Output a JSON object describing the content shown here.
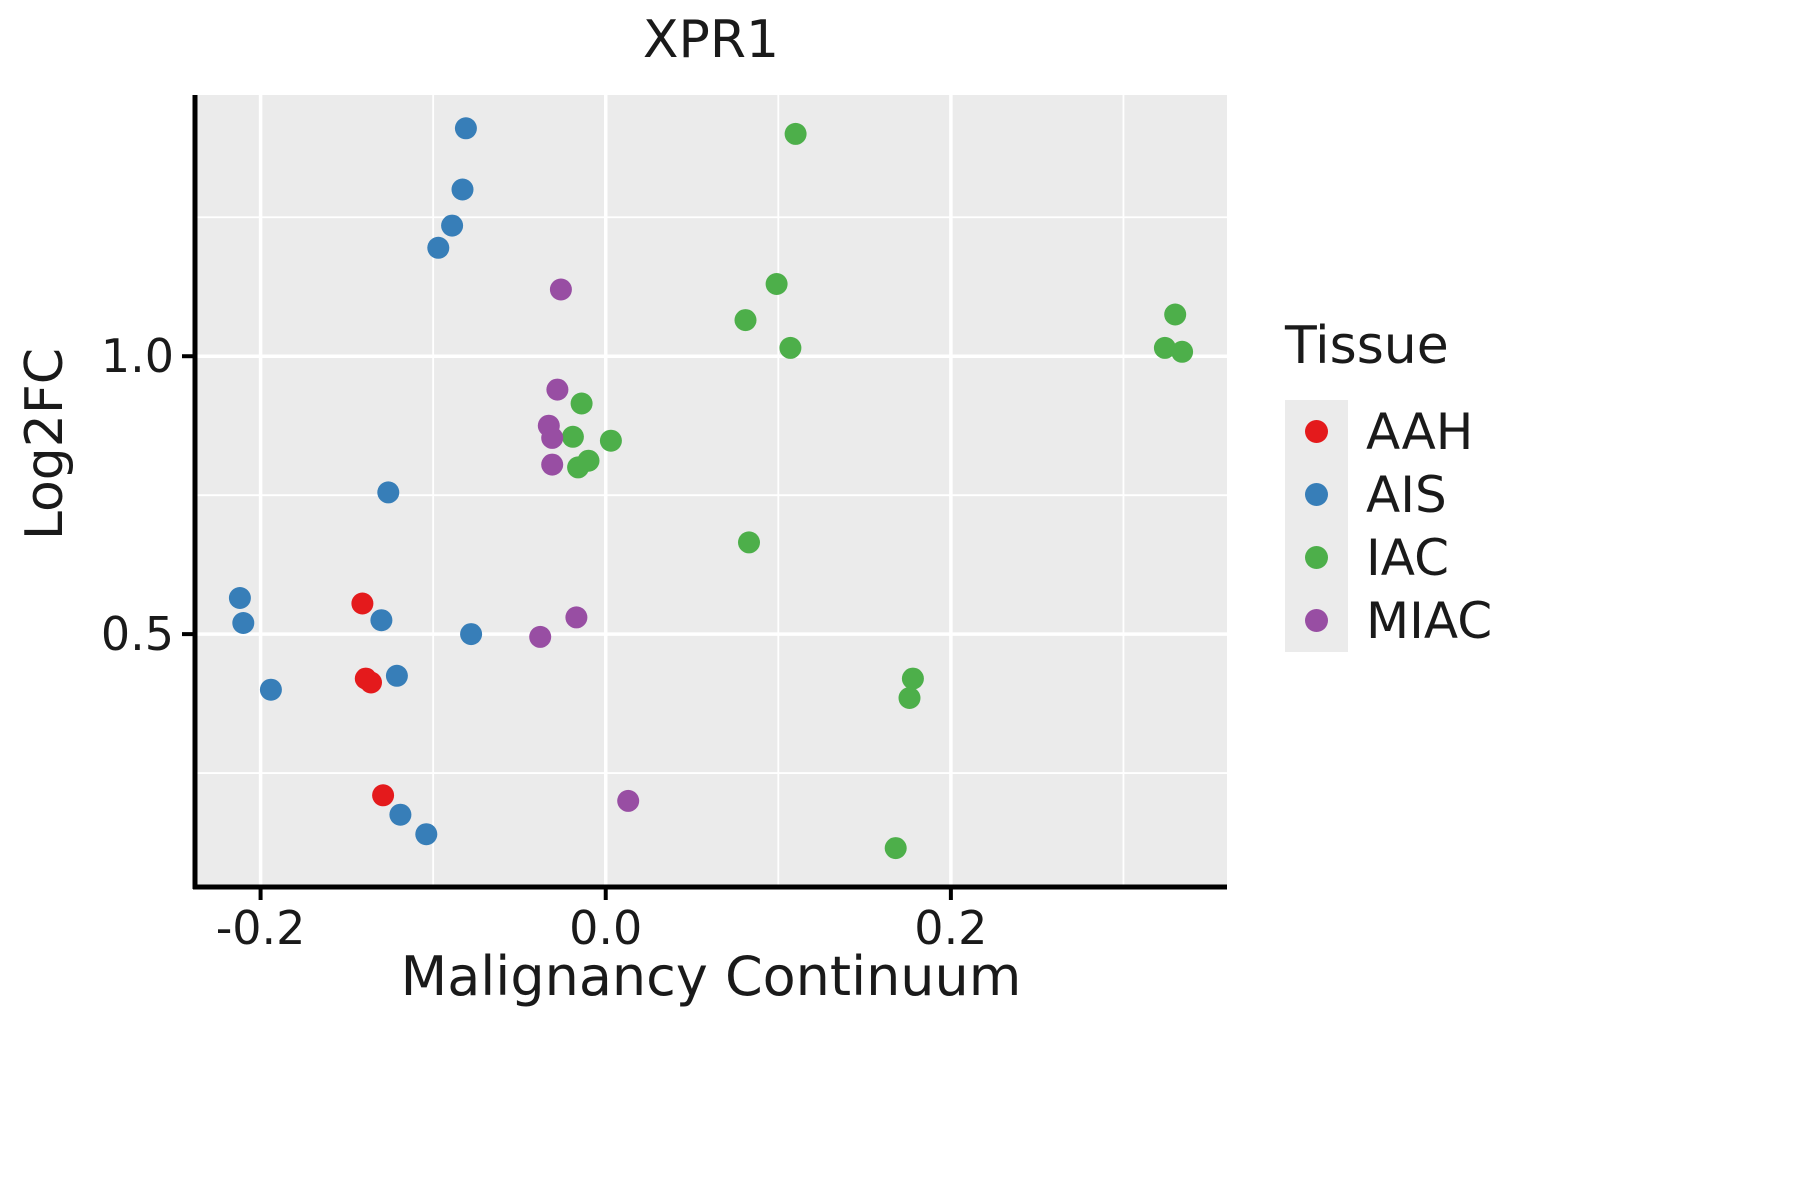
{
  "chart_data": {
    "type": "scatter",
    "title": "XPR1",
    "xlabel": "Malignancy Continuum",
    "ylabel": "Log2FC",
    "xlim": [
      -0.238,
      0.36
    ],
    "ylim": [
      0.045,
      1.47
    ],
    "x_major_ticks": [
      -0.2,
      0.0,
      0.2
    ],
    "x_tick_labels": [
      "-0.2",
      "0.0",
      "0.2"
    ],
    "x_minor_ticks": [
      -0.1,
      0.1,
      0.3
    ],
    "y_major_ticks": [
      0.5,
      1.0
    ],
    "y_tick_labels": [
      "0.5",
      "1.0"
    ],
    "y_minor_ticks": [
      0.25,
      0.75,
      1.25
    ],
    "grid": true,
    "panel_bg": "#EBEBEB",
    "grid_color": "#FFFFFF",
    "axis_color": "#000000",
    "point_radius": 11,
    "legend_title": "Tissue",
    "legend_position": "right",
    "series": [
      {
        "name": "AAH",
        "color": "#E41A1C",
        "points": [
          [
            -0.141,
            0.555
          ],
          [
            -0.139,
            0.42
          ],
          [
            -0.136,
            0.413
          ],
          [
            -0.129,
            0.21
          ]
        ]
      },
      {
        "name": "AIS",
        "color": "#377EB8",
        "points": [
          [
            -0.081,
            1.41
          ],
          [
            -0.083,
            1.3
          ],
          [
            -0.089,
            1.235
          ],
          [
            -0.097,
            1.195
          ],
          [
            -0.126,
            0.755
          ],
          [
            -0.212,
            0.565
          ],
          [
            -0.21,
            0.52
          ],
          [
            -0.13,
            0.525
          ],
          [
            -0.078,
            0.5
          ],
          [
            -0.194,
            0.4
          ],
          [
            -0.121,
            0.425
          ],
          [
            -0.119,
            0.175
          ],
          [
            -0.104,
            0.14
          ]
        ]
      },
      {
        "name": "IAC",
        "color": "#4DAF4A",
        "points": [
          [
            0.11,
            1.4
          ],
          [
            0.099,
            1.13
          ],
          [
            0.081,
            1.065
          ],
          [
            0.107,
            1.015
          ],
          [
            0.33,
            1.075
          ],
          [
            0.324,
            1.015
          ],
          [
            0.334,
            1.008
          ],
          [
            -0.014,
            0.915
          ],
          [
            -0.019,
            0.855
          ],
          [
            -0.016,
            0.8
          ],
          [
            -0.01,
            0.812
          ],
          [
            0.003,
            0.848
          ],
          [
            0.083,
            0.665
          ],
          [
            0.178,
            0.42
          ],
          [
            0.176,
            0.385
          ],
          [
            0.168,
            0.115
          ]
        ]
      },
      {
        "name": "MIAC",
        "color": "#984EA3",
        "points": [
          [
            -0.026,
            1.12
          ],
          [
            -0.028,
            0.94
          ],
          [
            -0.033,
            0.875
          ],
          [
            -0.031,
            0.853
          ],
          [
            -0.031,
            0.805
          ],
          [
            -0.038,
            0.495
          ],
          [
            -0.017,
            0.53
          ],
          [
            0.013,
            0.2
          ]
        ]
      }
    ]
  }
}
